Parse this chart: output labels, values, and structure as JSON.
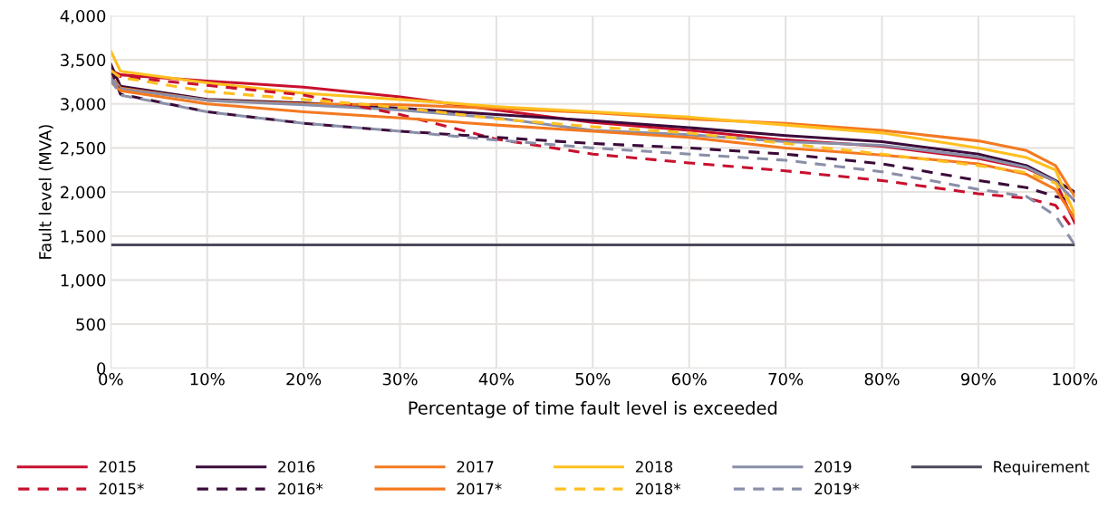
{
  "chart_data": {
    "type": "line",
    "xlabel": "Percentage of time fault level is exceeded",
    "ylabel": "Fault level (MVA)",
    "x": [
      0,
      1,
      10,
      20,
      30,
      40,
      50,
      60,
      70,
      80,
      90,
      95,
      98,
      100
    ],
    "xlim": [
      0,
      100
    ],
    "xticks": [
      {
        "value": 0,
        "label": "0%"
      },
      {
        "value": 10,
        "label": "10%"
      },
      {
        "value": 20,
        "label": "20%"
      },
      {
        "value": 30,
        "label": "30%"
      },
      {
        "value": 40,
        "label": "40%"
      },
      {
        "value": 50,
        "label": "50%"
      },
      {
        "value": 60,
        "label": "60%"
      },
      {
        "value": 70,
        "label": "70%"
      },
      {
        "value": 80,
        "label": "80%"
      },
      {
        "value": 90,
        "label": "90%"
      },
      {
        "value": 100,
        "label": "100%"
      }
    ],
    "ylim": [
      0,
      4000
    ],
    "yticks": [
      0,
      500,
      {
        "value": 1000,
        "label": "1,000"
      },
      {
        "value": 1500,
        "label": "1,500"
      },
      {
        "value": 2000,
        "label": "2,000"
      },
      {
        "value": 2500,
        "label": "2,500"
      },
      {
        "value": 3000,
        "label": "3,000"
      },
      {
        "value": 3500,
        "label": "3,500"
      },
      {
        "value": 4000,
        "label": "4,000"
      }
    ],
    "grid": true,
    "legend": "bottom",
    "marker": "none",
    "series": [
      {
        "name": "2015",
        "color": "#c8102e",
        "line_style": "solid",
        "values": [
          3380,
          3330,
          3260,
          3190,
          3080,
          2930,
          2790,
          2700,
          2590,
          2520,
          2380,
          2270,
          2120,
          1650
        ]
      },
      {
        "name": "2016",
        "color": "#3b0a3a",
        "line_style": "solid",
        "values": [
          3450,
          3200,
          3050,
          3010,
          2950,
          2880,
          2810,
          2730,
          2640,
          2570,
          2430,
          2300,
          2130,
          2000
        ]
      },
      {
        "name": "2017",
        "color": "#f47920",
        "line_style": "solid",
        "values": [
          3320,
          3180,
          3040,
          3000,
          2990,
          2950,
          2900,
          2830,
          2780,
          2700,
          2580,
          2470,
          2300,
          1950
        ]
      },
      {
        "name": "2018",
        "color": "#ffbf1f",
        "line_style": "solid",
        "values": [
          3600,
          3370,
          3240,
          3120,
          3050,
          2970,
          2910,
          2850,
          2760,
          2670,
          2500,
          2390,
          2250,
          1750
        ]
      },
      {
        "name": "2019",
        "color": "#8a8fa8",
        "line_style": "solid",
        "values": [
          3300,
          3170,
          3040,
          2990,
          2930,
          2840,
          2700,
          2650,
          2570,
          2530,
          2400,
          2280,
          2120,
          1900
        ]
      },
      {
        "name": "Requirement",
        "color": "#4a4a5a",
        "line_style": "solid",
        "x": [
          0,
          100
        ],
        "values": [
          1400,
          1400
        ]
      },
      {
        "name": "2015*",
        "color": "#c8102e",
        "line_style": "dashed",
        "values": [
          3350,
          3310,
          3210,
          3100,
          2880,
          2600,
          2430,
          2330,
          2240,
          2130,
          1980,
          1930,
          1850,
          1550
        ]
      },
      {
        "name": "2016*",
        "color": "#3b0a3a",
        "line_style": "dashed",
        "values": [
          3400,
          3110,
          2910,
          2780,
          2690,
          2620,
          2550,
          2500,
          2430,
          2320,
          2130,
          2050,
          1950,
          1900
        ]
      },
      {
        "name": "2017*",
        "color": "#f47920",
        "line_style": "solid",
        "values": [
          3250,
          3150,
          3000,
          2910,
          2840,
          2760,
          2690,
          2620,
          2500,
          2420,
          2320,
          2200,
          2030,
          1700
        ]
      },
      {
        "name": "2018*",
        "color": "#ffbf1f",
        "line_style": "dashed",
        "values": [
          3380,
          3300,
          3140,
          3050,
          2960,
          2830,
          2740,
          2670,
          2550,
          2430,
          2300,
          2220,
          2100,
          1800
        ]
      },
      {
        "name": "2019*",
        "color": "#8a8fa8",
        "line_style": "dashed",
        "values": [
          3280,
          3100,
          2910,
          2780,
          2690,
          2590,
          2500,
          2430,
          2360,
          2230,
          2030,
          1950,
          1730,
          1400
        ]
      }
    ]
  }
}
